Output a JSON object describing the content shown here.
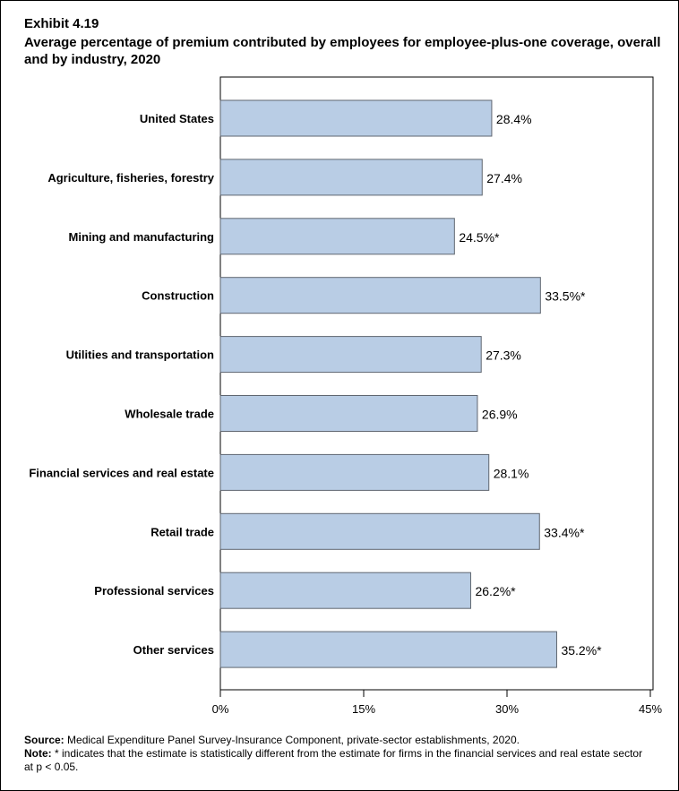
{
  "chart_data": {
    "type": "bar",
    "orientation": "horizontal",
    "exhibit": "Exhibit 4.19",
    "title": "Average percentage of premium contributed by employees for employee-plus-one coverage, overall and by industry, 2020",
    "categories": [
      "United States",
      "Agriculture, fisheries, forestry",
      "Mining and manufacturing",
      "Construction",
      "Utilities and transportation",
      "Wholesale trade",
      "Financial services and real estate",
      "Retail trade",
      "Professional services",
      "Other services"
    ],
    "values": [
      28.4,
      27.4,
      24.5,
      33.5,
      27.3,
      26.9,
      28.1,
      33.4,
      26.2,
      35.2
    ],
    "data_labels": [
      "28.4%",
      "27.4%",
      "24.5%*",
      "33.5%*",
      "27.3%",
      "26.9%",
      "28.1%",
      "33.4%*",
      "26.2%*",
      "35.2%*"
    ],
    "xlim": [
      0,
      45
    ],
    "xticks": [
      0,
      15,
      30,
      45
    ],
    "xtick_labels": [
      "0%",
      "15%",
      "30%",
      "45%"
    ],
    "grid": false,
    "bar_color": "#b9cde5",
    "bar_edge_color": "#5f6670"
  },
  "footer": {
    "source_label": "Source:",
    "source_text": " Medical Expenditure Panel Survey-Insurance Component, private-sector establishments, 2020.",
    "note_label": "Note:",
    "note_text": "  * indicates that the estimate is statistically different from the estimate for firms in the financial services and real estate sector at p < 0.05."
  }
}
